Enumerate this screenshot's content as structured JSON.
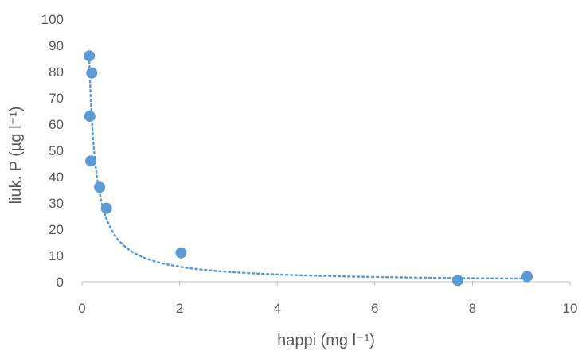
{
  "chart_data": {
    "type": "scatter",
    "title": "",
    "xlabel": "happi (mg l⁻¹)",
    "ylabel": "liuk. P (µg l⁻¹)",
    "xlim": [
      0,
      10
    ],
    "ylim": [
      0,
      100
    ],
    "x_ticks": [
      "0",
      "2",
      "4",
      "6",
      "8",
      "10"
    ],
    "y_ticks": [
      "0",
      "10",
      "20",
      "30",
      "40",
      "50",
      "60",
      "70",
      "80",
      "90",
      "100"
    ],
    "grid": false,
    "legend": "none",
    "marker_color": "#5b9bd5",
    "trendline": "power",
    "series": [
      {
        "points": [
          {
            "x": 0.15,
            "y": 86
          },
          {
            "x": 0.2,
            "y": 79.5
          },
          {
            "x": 0.16,
            "y": 63
          },
          {
            "x": 0.18,
            "y": 46
          },
          {
            "x": 0.36,
            "y": 36
          },
          {
            "x": 0.5,
            "y": 28
          },
          {
            "x": 2.03,
            "y": 11
          },
          {
            "x": 7.7,
            "y": 0.5
          },
          {
            "x": 9.12,
            "y": 2
          }
        ]
      }
    ]
  }
}
